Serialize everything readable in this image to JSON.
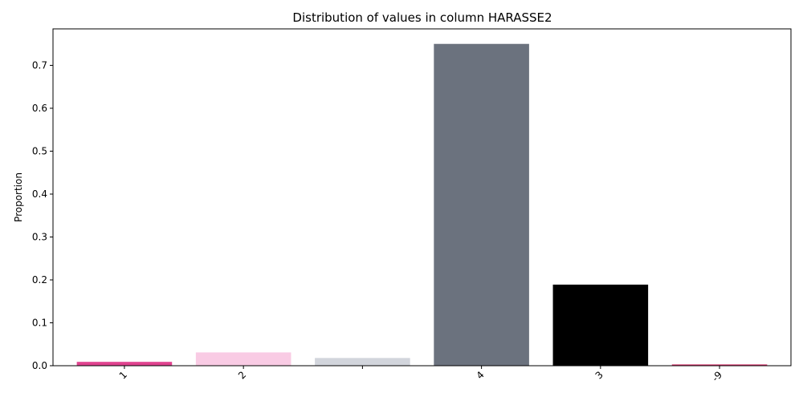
{
  "chart_data": {
    "type": "bar",
    "title": "Distribution of values in column HARASSE2",
    "xlabel": "",
    "ylabel": "Proportion",
    "categories": [
      "1",
      "2",
      "",
      "4",
      "3",
      "-9"
    ],
    "values": [
      0.009,
      0.031,
      0.018,
      0.75,
      0.189,
      0.003
    ],
    "colors": [
      "#e0448f",
      "#f9cbe4",
      "#d2d5dc",
      "#6b727e",
      "#000000",
      "#d6336c"
    ],
    "ylim": [
      0,
      0.785
    ],
    "yticks": [
      0.0,
      0.1,
      0.2,
      0.3,
      0.4,
      0.5,
      0.6,
      0.7
    ],
    "ytick_labels": [
      "0.0",
      "0.1",
      "0.2",
      "0.3",
      "0.4",
      "0.5",
      "0.6",
      "0.7"
    ],
    "grid": false,
    "legend": "none"
  }
}
